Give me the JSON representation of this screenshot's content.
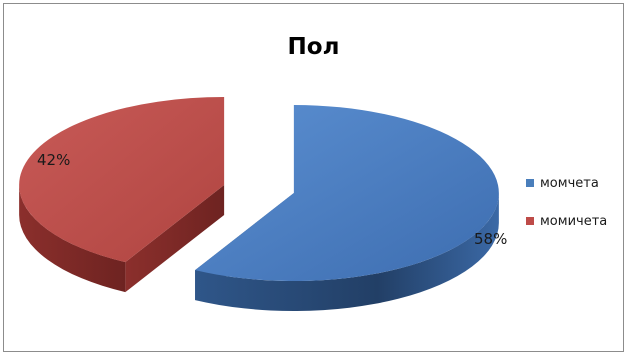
{
  "chart_data": {
    "type": "pie",
    "title": "Пол",
    "categories": [
      "момчета",
      "момичета"
    ],
    "values": [
      58,
      42
    ],
    "data_labels": [
      "58%",
      "42%"
    ],
    "colors": [
      "#4a7ebb",
      "#be4b48"
    ],
    "legend_position": "right",
    "style": "3d-exploded"
  }
}
